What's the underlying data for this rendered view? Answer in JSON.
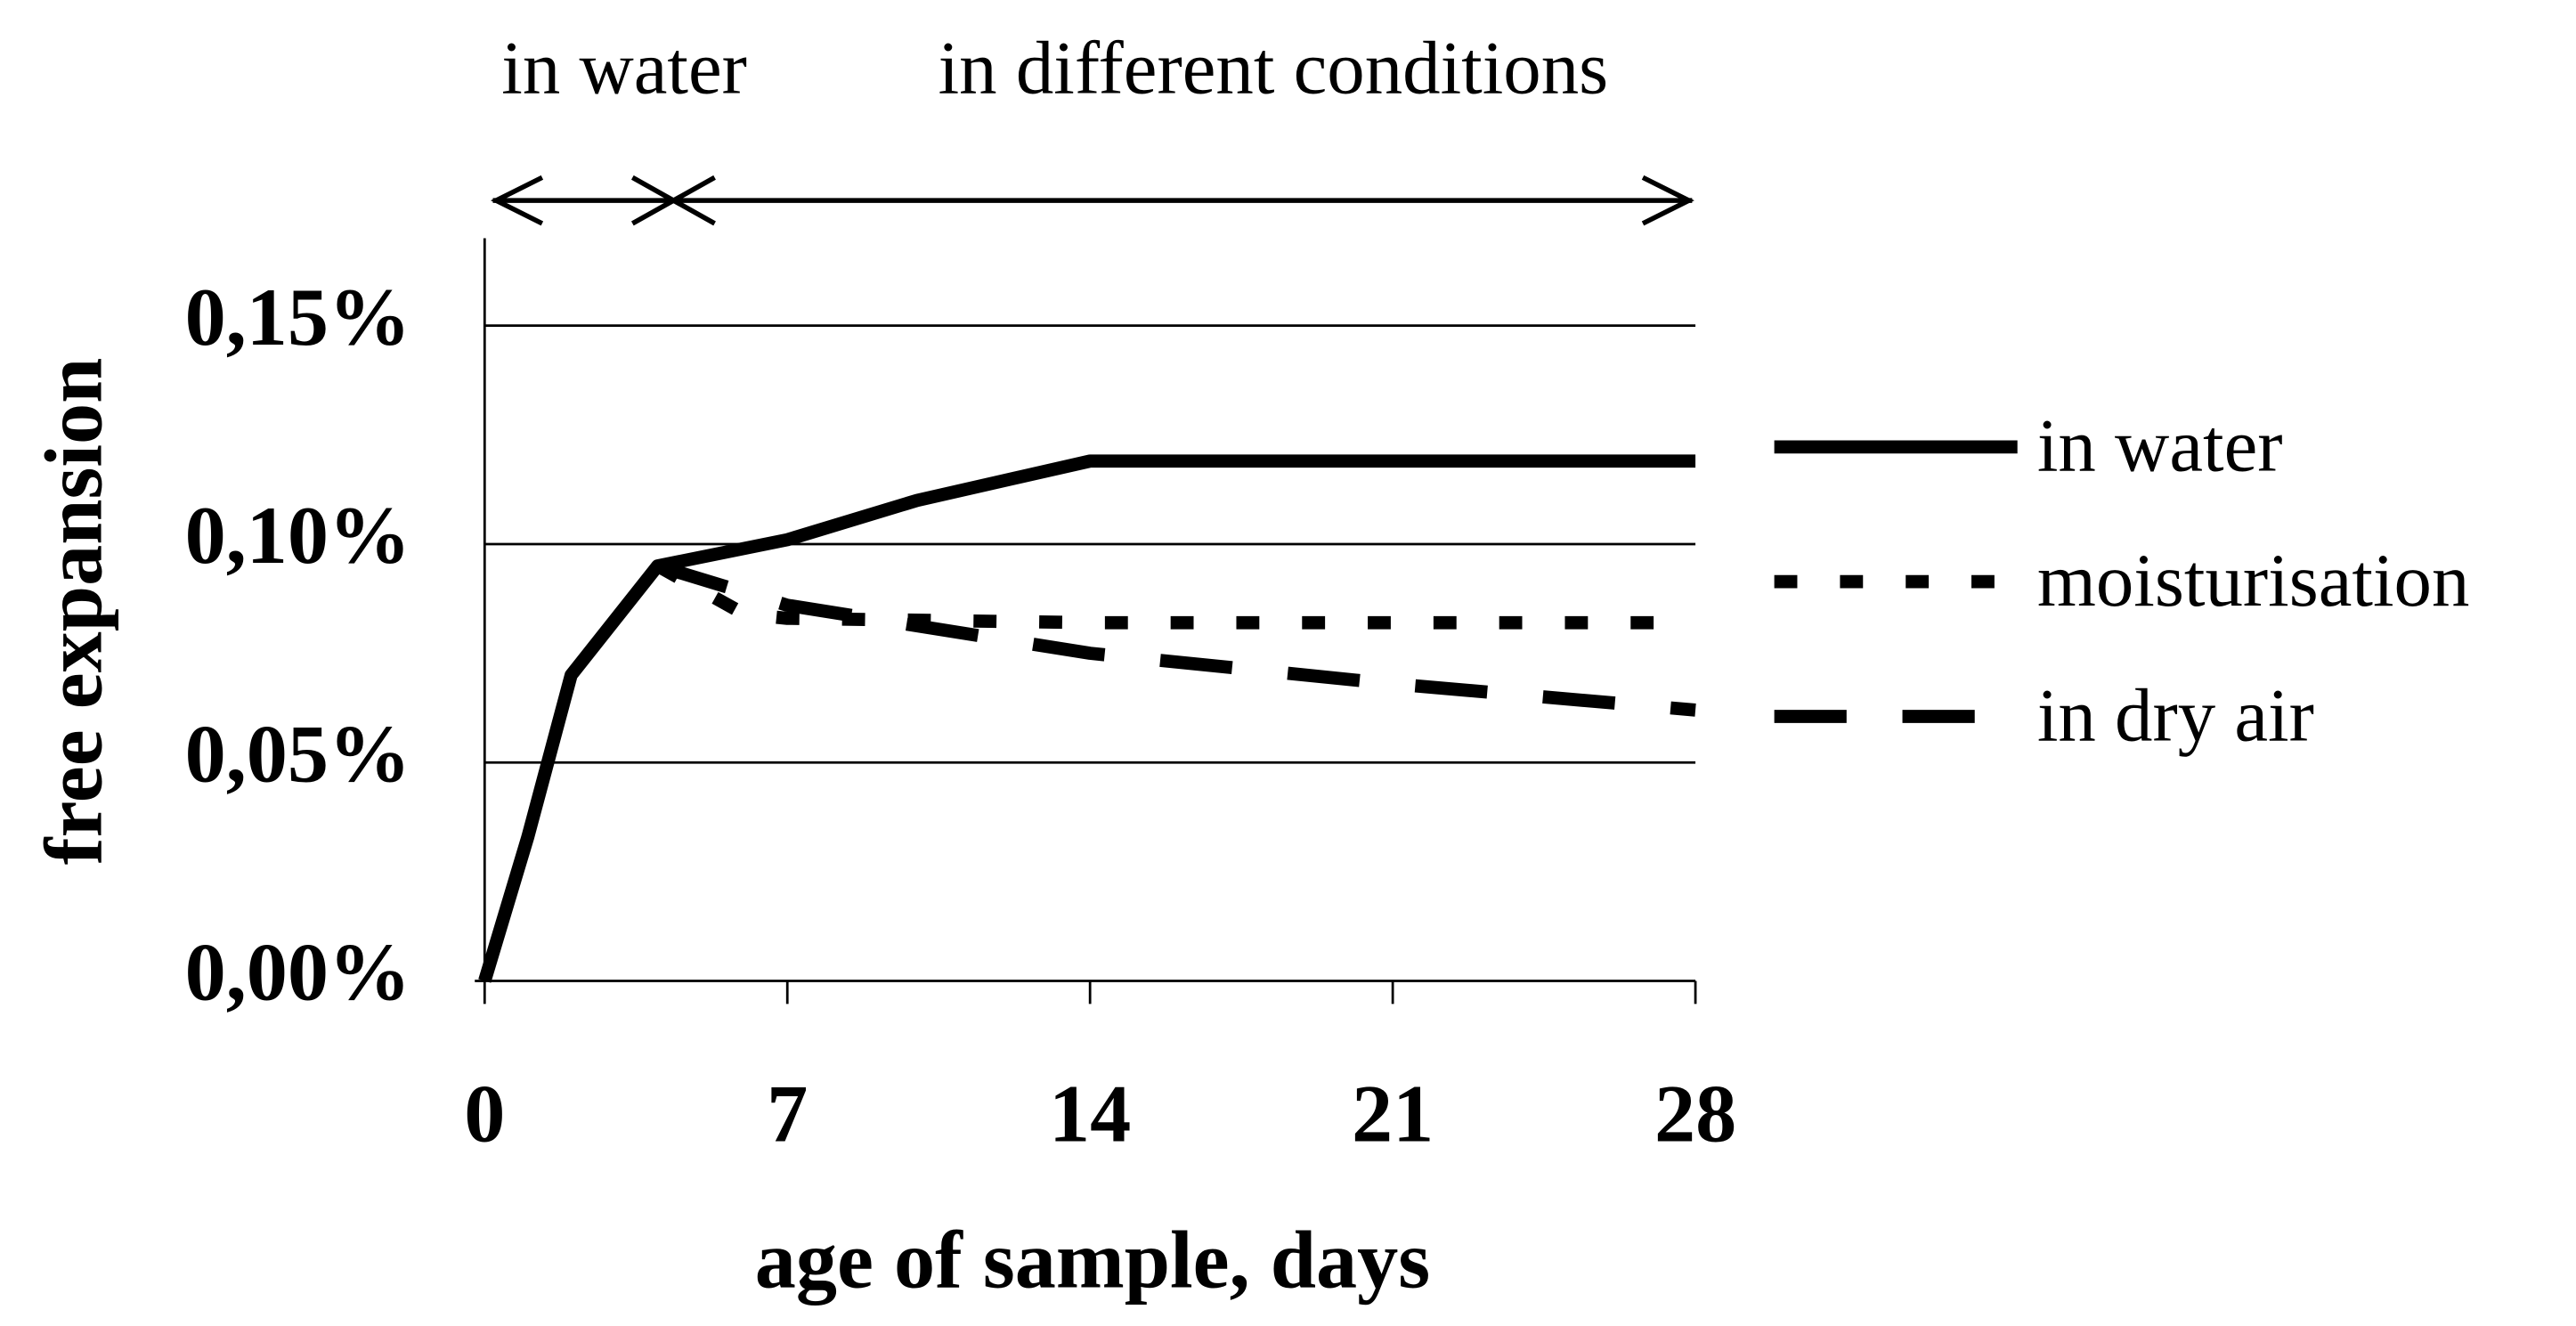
{
  "chart_data": {
    "type": "line",
    "annotations": [
      "in water",
      "in different conditions"
    ],
    "ylabel": "free expansion",
    "xlabel": "age of sample, days",
    "xlim": [
      0,
      28
    ],
    "xticks": [
      0,
      7,
      14,
      21,
      28
    ],
    "ylim": [
      0,
      0.17
    ],
    "yticks": [
      {
        "value": 0,
        "label": "0,00%"
      },
      {
        "value": 0.05,
        "label": "0,05%"
      },
      {
        "value": 0.1,
        "label": "0,10%"
      },
      {
        "value": 0.15,
        "label": "0,15%"
      }
    ],
    "grid": true,
    "legend": "right",
    "series": [
      {
        "name": "in water",
        "color": "#000000",
        "style": "solid",
        "x": [
          0,
          1,
          2,
          4,
          7,
          10,
          14,
          28
        ],
        "values": [
          0,
          0.033,
          0.07,
          0.095,
          0.101,
          0.11,
          0.119,
          0.119
        ]
      },
      {
        "name": "moisturisation",
        "color": "#000000",
        "style": "dotted",
        "x": [
          4,
          6,
          7,
          14,
          28
        ],
        "values": [
          0.095,
          0.084,
          0.083,
          0.082,
          0.082
        ]
      },
      {
        "name": "in dry air",
        "color": "#000000",
        "style": "dashed",
        "x": [
          4,
          7,
          14,
          21,
          28
        ],
        "values": [
          0.095,
          0.086,
          0.075,
          0.068,
          0.062
        ]
      }
    ]
  }
}
